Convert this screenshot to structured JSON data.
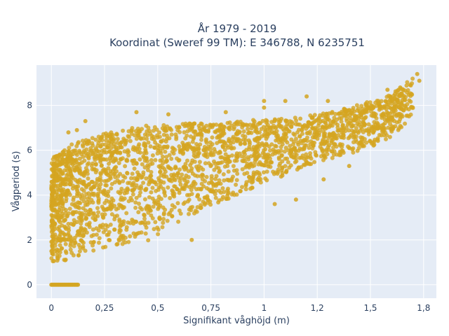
{
  "chart_data": {
    "type": "scatter",
    "title": "År 1979 - 2019",
    "subtitle": "Koordinat (Sweref 99 TM): E 346788, N 6235751",
    "xlabel": "Signifikant våghöjd (m)",
    "ylabel": "Vågperiod (s)",
    "xlim": [
      -0.07,
      1.81
    ],
    "ylim": [
      -0.6,
      9.8
    ],
    "xticks": [
      0,
      0.25,
      0.5,
      0.75,
      1,
      1.25,
      1.5,
      1.75
    ],
    "xtick_labels": [
      "0",
      "0,25",
      "0,5",
      "0,75",
      "1",
      "1,2",
      "1,5",
      "1,8"
    ],
    "yticks": [
      0,
      2,
      4,
      6,
      8
    ],
    "ytick_labels": [
      "0",
      "2",
      "4",
      "6",
      "8"
    ],
    "grid": true,
    "series": [
      {
        "name": "",
        "color": "#d4a520",
        "points_description": "dense cloud",
        "upper_envelope": [
          [
            0.0,
            5.6
          ],
          [
            0.05,
            6.0
          ],
          [
            0.1,
            6.3
          ],
          [
            0.2,
            6.6
          ],
          [
            0.3,
            6.9
          ],
          [
            0.4,
            7.1
          ],
          [
            0.5,
            7.1
          ],
          [
            0.6,
            7.2
          ],
          [
            0.75,
            7.2
          ],
          [
            0.9,
            7.3
          ],
          [
            1.0,
            7.4
          ],
          [
            1.1,
            7.4
          ],
          [
            1.25,
            7.6
          ],
          [
            1.4,
            7.9
          ],
          [
            1.5,
            8.2
          ],
          [
            1.6,
            8.5
          ],
          [
            1.7,
            9.3
          ]
        ],
        "lower_envelope": [
          [
            0.0,
            1.0
          ],
          [
            0.1,
            1.1
          ],
          [
            0.2,
            1.5
          ],
          [
            0.3,
            1.7
          ],
          [
            0.4,
            1.85
          ],
          [
            0.5,
            2.0
          ],
          [
            0.55,
            2.6
          ],
          [
            0.6,
            2.8
          ],
          [
            0.75,
            3.5
          ],
          [
            0.9,
            4.1
          ],
          [
            1.0,
            4.5
          ],
          [
            1.1,
            4.9
          ],
          [
            1.2,
            5.2
          ],
          [
            1.3,
            5.5
          ],
          [
            1.4,
            5.8
          ],
          [
            1.5,
            6.1
          ],
          [
            1.6,
            6.6
          ],
          [
            1.7,
            7.5
          ]
        ],
        "zero_period_segment": {
          "x_start": 0.0,
          "x_end": 0.13,
          "y": 0
        },
        "outliers": [
          [
            0.08,
            6.8
          ],
          [
            0.16,
            7.3
          ],
          [
            0.4,
            7.7
          ],
          [
            0.55,
            7.6
          ],
          [
            0.82,
            7.7
          ],
          [
            1.0,
            7.9
          ],
          [
            1.0,
            8.2
          ],
          [
            1.1,
            8.2
          ],
          [
            1.2,
            8.4
          ],
          [
            1.3,
            8.2
          ],
          [
            1.05,
            3.6
          ],
          [
            1.15,
            3.8
          ],
          [
            1.28,
            4.7
          ],
          [
            1.4,
            5.3
          ],
          [
            1.58,
            8.7
          ],
          [
            1.64,
            8.8
          ],
          [
            1.72,
            9.4
          ],
          [
            1.73,
            9.1
          ],
          [
            0.66,
            2.0
          ],
          [
            0.12,
            6.9
          ]
        ]
      }
    ]
  }
}
